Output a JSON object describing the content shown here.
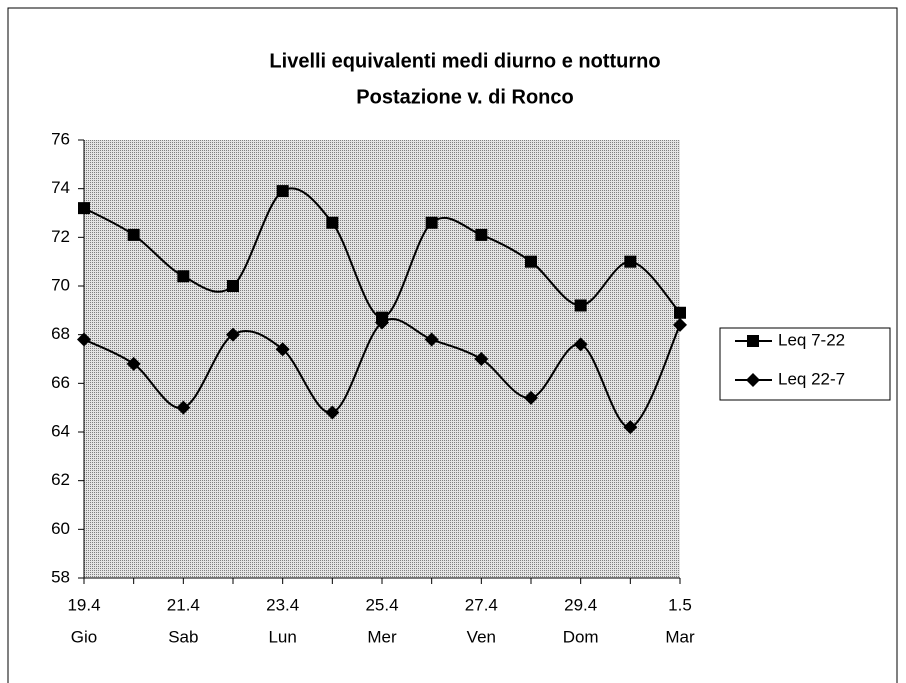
{
  "chart_data": {
    "type": "line",
    "title": "Livelli equivalenti medi diurno e notturno",
    "subtitle": "Postazione v. di Ronco",
    "categories": [
      "19.4",
      null,
      "21.4",
      null,
      "23.4",
      null,
      "25.4",
      null,
      "27.4",
      null,
      "29.4",
      null,
      "1.5"
    ],
    "weekdays": [
      "Gio",
      null,
      "Sab",
      null,
      "Lun",
      null,
      "Mer",
      null,
      "Ven",
      null,
      "Dom",
      null,
      "Mar"
    ],
    "series": [
      {
        "name": "Leq 7-22",
        "color": "#000000",
        "marker": "square",
        "values": [
          73.2,
          72.1,
          70.4,
          70.0,
          73.9,
          72.6,
          68.7,
          72.6,
          72.1,
          71.0,
          69.2,
          71.0,
          68.9
        ]
      },
      {
        "name": "Leq 22-7",
        "color": "#000000",
        "marker": "diamond",
        "values": [
          67.8,
          66.8,
          65.0,
          68.0,
          67.4,
          64.8,
          68.5,
          67.8,
          67.0,
          65.4,
          67.6,
          64.2,
          68.4
        ]
      }
    ],
    "ylim": [
      58,
      76
    ],
    "yticks": [
      58,
      60,
      62,
      64,
      66,
      68,
      70,
      72,
      74,
      76
    ],
    "smooth": true,
    "legend": "right"
  }
}
